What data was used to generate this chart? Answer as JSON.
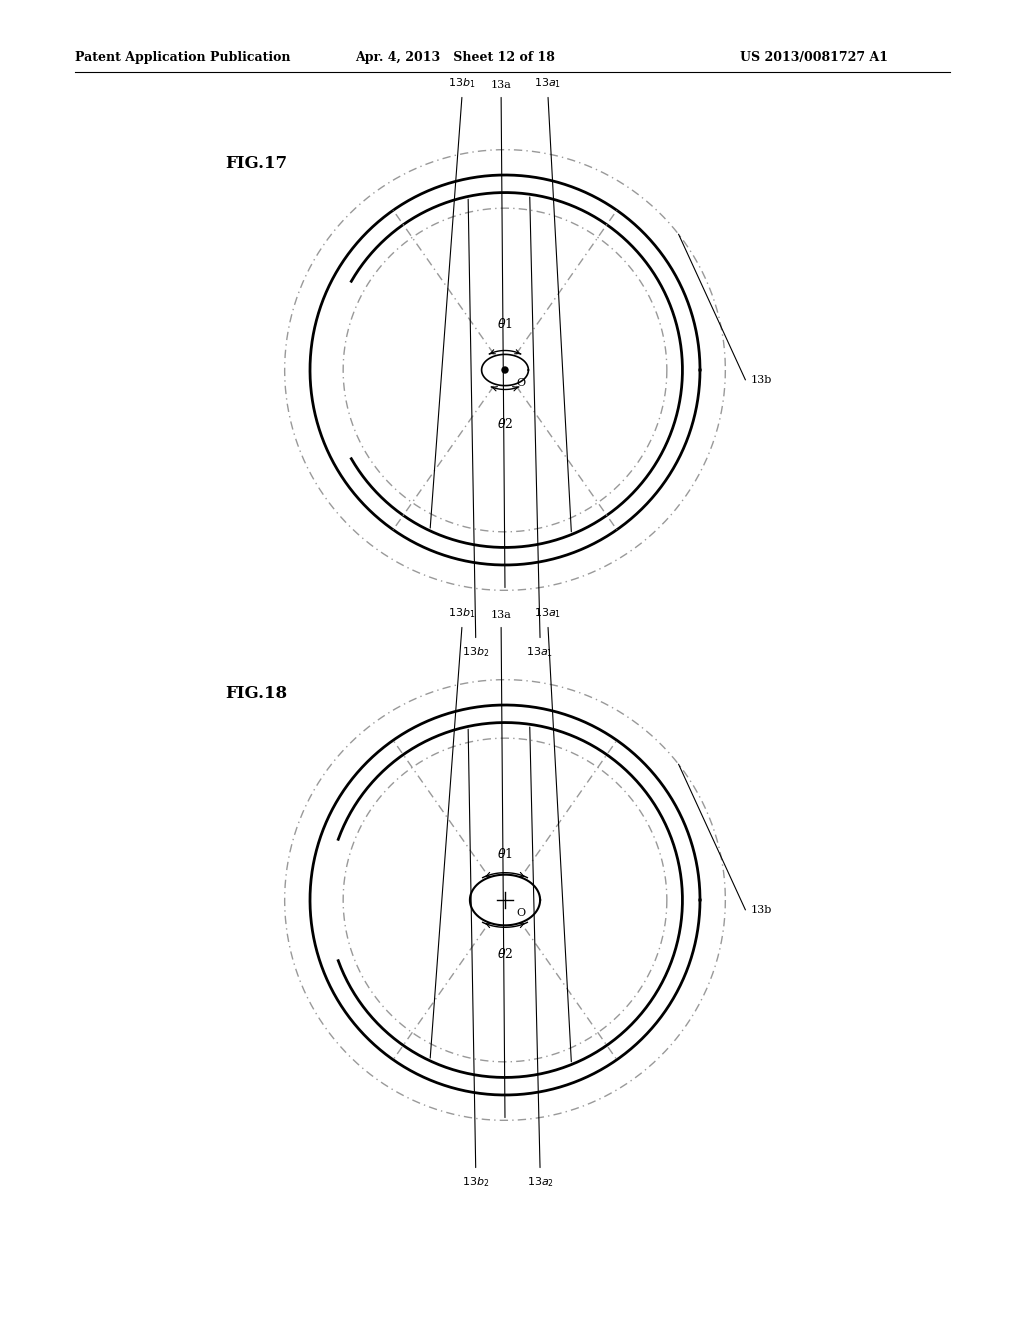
{
  "bg_color": "#ffffff",
  "text_color": "#000000",
  "header_left": "Patent Application Publication",
  "header_mid": "Apr. 4, 2013   Sheet 12 of 18",
  "header_right": "US 2013/0081727 A1",
  "fig17_label": "FIG.17",
  "fig18_label": "FIG.18",
  "line_color": "#000000",
  "dash_color": "#888888",
  "dashdot_color": "#888888"
}
